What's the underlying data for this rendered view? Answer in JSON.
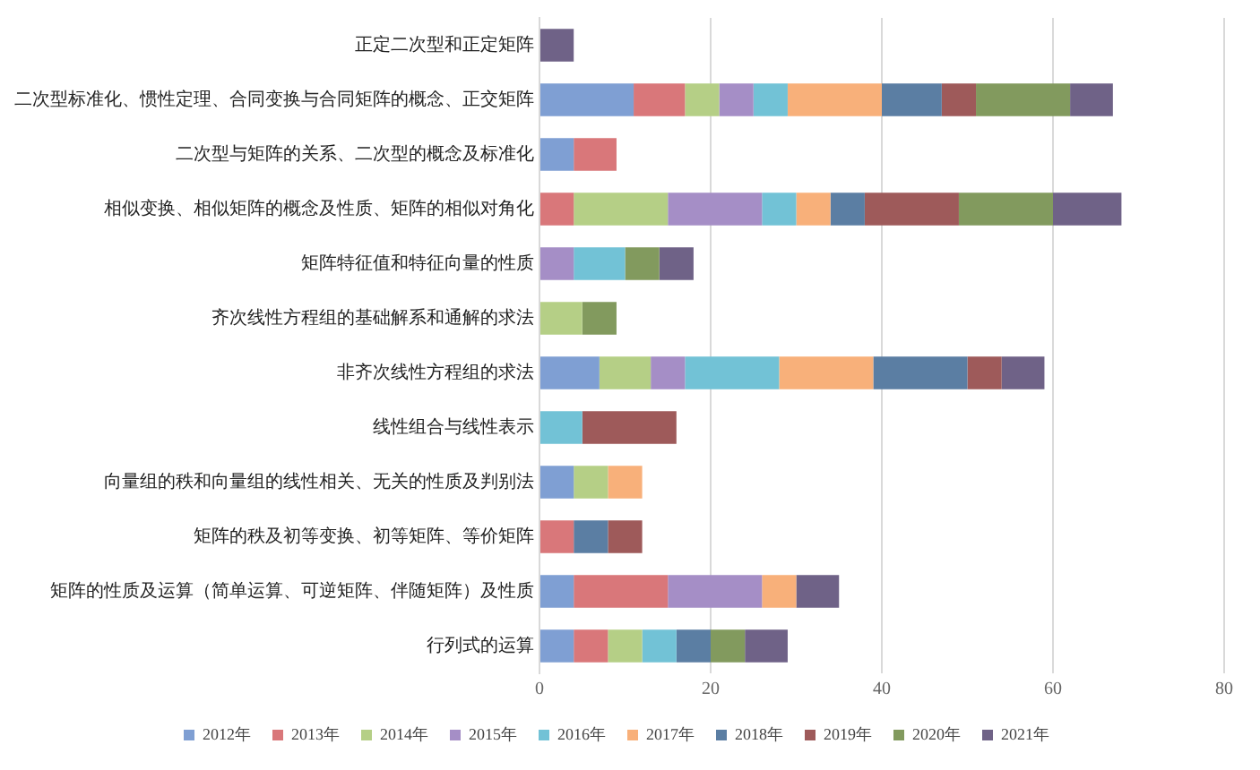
{
  "chart_data": {
    "type": "bar",
    "orientation": "horizontal",
    "stacked": true,
    "grid": "x",
    "legend": "bottom",
    "categories": [
      "正定二次型和正定矩阵",
      "二次型标准化、惯性定理、合同变换与合同矩阵的概念、正交矩阵",
      "二次型与矩阵的关系、二次型的概念及标准化",
      "相似变换、相似矩阵的概念及性质、矩阵的相似对角化",
      "矩阵特征值和特征向量的性质",
      "齐次线性方程组的基础解系和通解的求法",
      "非齐次线性方程组的求法",
      "线性组合与线性表示",
      "向量组的秩和向量组的线性相关、无关的性质及判别法",
      "矩阵的秩及初等变换、初等矩阵、等价矩阵",
      "矩阵的性质及运算（简单运算、可逆矩阵、伴随矩阵）及性质",
      "行列式的运算"
    ],
    "xlim": [
      0,
      80
    ],
    "xticks": [
      0,
      20,
      40,
      60,
      80
    ],
    "series": [
      {
        "name": "2012年",
        "color": "#7f9fd3",
        "values": [
          null,
          11,
          4,
          null,
          null,
          null,
          7,
          null,
          4,
          null,
          4,
          4
        ]
      },
      {
        "name": "2013年",
        "color": "#d9777a",
        "values": [
          null,
          6,
          5,
          4,
          null,
          null,
          null,
          null,
          null,
          4,
          11,
          4
        ]
      },
      {
        "name": "2014年",
        "color": "#b5cf86",
        "values": [
          null,
          4,
          null,
          11,
          null,
          5,
          6,
          null,
          4,
          null,
          null,
          4
        ]
      },
      {
        "name": "2015年",
        "color": "#a58ec6",
        "values": [
          null,
          4,
          null,
          11,
          4,
          null,
          4,
          null,
          null,
          null,
          11,
          null
        ]
      },
      {
        "name": "2016年",
        "color": "#72c2d6",
        "values": [
          null,
          4,
          null,
          4,
          6,
          null,
          11,
          5,
          null,
          null,
          null,
          4
        ]
      },
      {
        "name": "2017年",
        "color": "#f8b07a",
        "values": [
          null,
          11,
          null,
          4,
          null,
          null,
          11,
          null,
          4,
          null,
          4,
          null
        ]
      },
      {
        "name": "2018年",
        "color": "#5b7ea3",
        "values": [
          null,
          7,
          null,
          4,
          null,
          null,
          11,
          null,
          null,
          4,
          null,
          4
        ]
      },
      {
        "name": "2019年",
        "color": "#9e5a5a",
        "values": [
          null,
          4,
          null,
          11,
          null,
          null,
          4,
          11,
          null,
          4,
          null,
          null
        ]
      },
      {
        "name": "2020年",
        "color": "#829a5e",
        "values": [
          null,
          11,
          null,
          11,
          4,
          4,
          null,
          null,
          null,
          null,
          null,
          4
        ]
      },
      {
        "name": "2021年",
        "color": "#6f6287",
        "values": [
          4,
          5,
          null,
          8,
          4,
          null,
          5,
          null,
          null,
          null,
          5,
          5
        ]
      }
    ]
  }
}
